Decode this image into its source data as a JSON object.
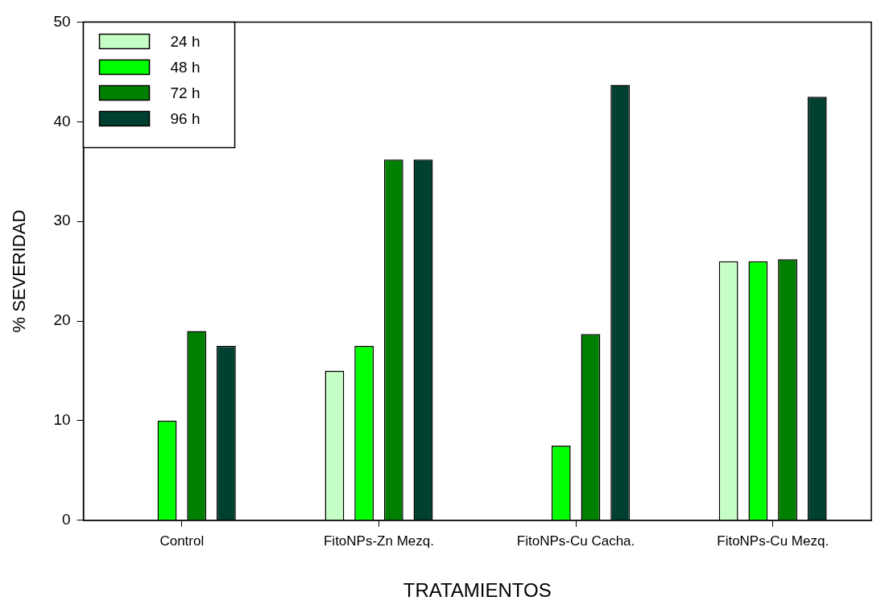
{
  "chart_data": {
    "type": "bar",
    "xlabel": "TRATAMIENTOS",
    "ylabel": "% SEVERIDAD",
    "categories": [
      "Control",
      "FitoNPs-Zn Mezq.",
      "FitoNPs-Cu Cacha.",
      "FitoNPs-Cu Mezq."
    ],
    "series": [
      {
        "name": "24 h",
        "color": "#c6ffc6",
        "values": [
          0,
          15,
          0,
          26
        ]
      },
      {
        "name": "48 h",
        "color": "#00ff00",
        "values": [
          10,
          17.5,
          7.5,
          26
        ]
      },
      {
        "name": "72 h",
        "color": "#008000",
        "values": [
          19,
          36.2,
          18.7,
          26.2
        ]
      },
      {
        "name": "96 h",
        "color": "#004030",
        "values": [
          17.5,
          36.2,
          43.7,
          42.5
        ]
      }
    ],
    "ylim": [
      0,
      50
    ],
    "yticks": [
      0,
      10,
      20,
      30,
      40,
      50
    ],
    "grid": false,
    "legend": "top left"
  }
}
